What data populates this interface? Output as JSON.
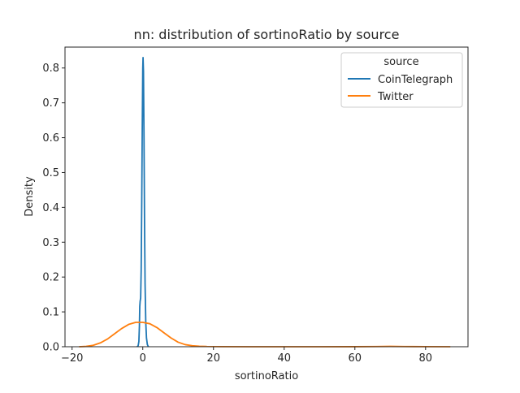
{
  "chart_data": {
    "type": "line",
    "title": "nn: distribution of sortinoRatio by source",
    "xlabel": "sortinoRatio",
    "ylabel": "Density",
    "xlim": [
      -22,
      92
    ],
    "ylim": [
      0,
      0.86
    ],
    "xticks": [
      -20,
      0,
      20,
      40,
      60,
      80
    ],
    "yticks": [
      0.0,
      0.1,
      0.2,
      0.3,
      0.4,
      0.5,
      0.6,
      0.7,
      0.8
    ],
    "grid": false,
    "legend": {
      "title": "source",
      "placement": "top-right"
    },
    "series": [
      {
        "name": "CoinTelegraph",
        "color": "#1f77b4",
        "points": [
          [
            -1.6,
            0.0
          ],
          [
            -1.3,
            0.003
          ],
          [
            -1.1,
            0.015
          ],
          [
            -0.95,
            0.06
          ],
          [
            -0.85,
            0.115
          ],
          [
            -0.75,
            0.13
          ],
          [
            -0.6,
            0.14
          ],
          [
            -0.45,
            0.22
          ],
          [
            -0.3,
            0.4
          ],
          [
            -0.15,
            0.62
          ],
          [
            0.0,
            0.8
          ],
          [
            0.08,
            0.83
          ],
          [
            0.2,
            0.79
          ],
          [
            0.35,
            0.6
          ],
          [
            0.5,
            0.36
          ],
          [
            0.65,
            0.18
          ],
          [
            0.85,
            0.07
          ],
          [
            1.05,
            0.025
          ],
          [
            1.3,
            0.006
          ],
          [
            1.6,
            0.0
          ]
        ]
      },
      {
        "name": "Twitter",
        "color": "#ff7f0e",
        "points": [
          [
            -18,
            0.0
          ],
          [
            -16,
            0.001
          ],
          [
            -14,
            0.004
          ],
          [
            -12,
            0.011
          ],
          [
            -10,
            0.022
          ],
          [
            -8,
            0.037
          ],
          [
            -6,
            0.052
          ],
          [
            -4,
            0.064
          ],
          [
            -2,
            0.07
          ],
          [
            0,
            0.07
          ],
          [
            2,
            0.066
          ],
          [
            4,
            0.055
          ],
          [
            6,
            0.04
          ],
          [
            8,
            0.025
          ],
          [
            10,
            0.013
          ],
          [
            12,
            0.006
          ],
          [
            14,
            0.003
          ],
          [
            16,
            0.0015
          ],
          [
            18,
            0.0008
          ],
          [
            22,
            0.0003
          ],
          [
            30,
            0.0
          ],
          [
            50,
            0.0
          ],
          [
            60,
            0.0001
          ],
          [
            66,
            0.0006
          ],
          [
            70,
            0.001
          ],
          [
            74,
            0.0006
          ],
          [
            80,
            0.0002
          ],
          [
            87,
            0.0
          ]
        ]
      }
    ]
  }
}
